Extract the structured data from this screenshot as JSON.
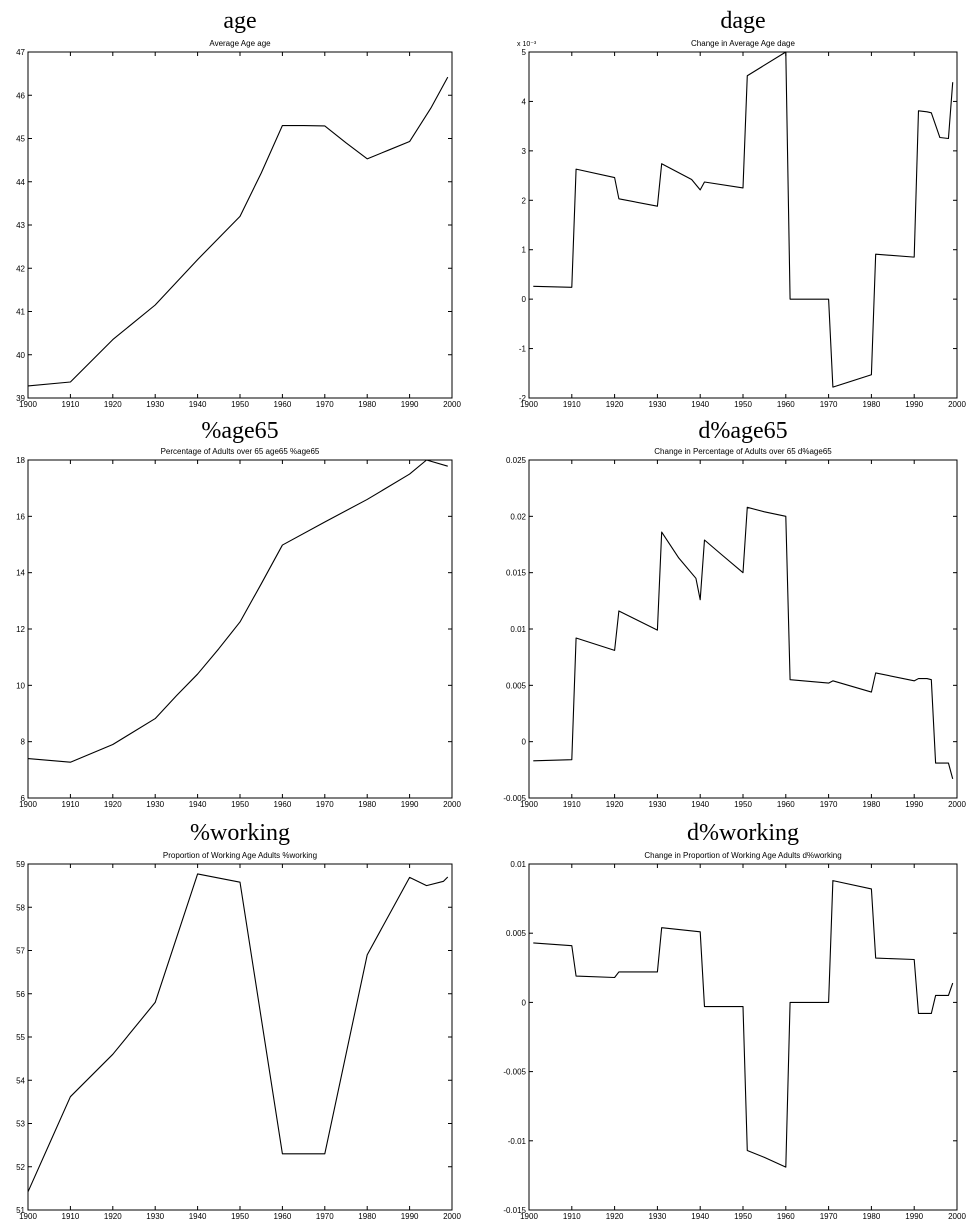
{
  "chart_data": [
    {
      "type": "line",
      "title": "age",
      "subtitle": "Average Age age",
      "xlabel": "",
      "ylabel": "",
      "xlim": [
        1900,
        2000
      ],
      "ylim": [
        39,
        47
      ],
      "xticks": [
        1900,
        1910,
        1920,
        1930,
        1940,
        1950,
        1960,
        1970,
        1980,
        1990,
        2000
      ],
      "yticks": [
        39,
        40,
        41,
        42,
        43,
        44,
        45,
        46,
        47
      ],
      "ytick_labels": [
        "39",
        "40",
        "41",
        "42",
        "43",
        "44",
        "45",
        "46",
        "47"
      ],
      "y_exponent_label": "",
      "grid": false,
      "series": [
        {
          "x": [
            1900,
            1910,
            1920,
            1930,
            1940,
            1950,
            1955,
            1960,
            1965,
            1970,
            1975,
            1980,
            1985,
            1990,
            1995,
            1999
          ],
          "y": [
            39.28,
            39.37,
            40.35,
            41.15,
            42.2,
            43.2,
            44.2,
            45.3,
            45.3,
            45.29,
            44.9,
            44.53,
            44.73,
            44.93,
            45.7,
            46.42
          ]
        }
      ]
    },
    {
      "type": "line",
      "title": "dage",
      "subtitle": "Change in Average Age dage",
      "xlabel": "",
      "ylabel": "",
      "xlim": [
        1900,
        2000
      ],
      "ylim": [
        -0.002,
        0.005
      ],
      "xticks": [
        1900,
        1910,
        1920,
        1930,
        1940,
        1950,
        1960,
        1970,
        1980,
        1990,
        2000
      ],
      "yticks": [
        -0.002,
        -0.001,
        0,
        0.001,
        0.002,
        0.003,
        0.004,
        0.005
      ],
      "ytick_labels": [
        "-2",
        "-1",
        "0",
        "1",
        "2",
        "3",
        "4",
        "5"
      ],
      "y_exponent_label": "x 10⁻³",
      "grid": false,
      "series": [
        {
          "x": [
            1901,
            1910,
            1911,
            1920,
            1921,
            1930,
            1931,
            1938,
            1940,
            1941,
            1950,
            1951,
            1960,
            1961,
            1970,
            1971,
            1980,
            1981,
            1990,
            1991,
            1993,
            1994,
            1996,
            1998,
            1999
          ],
          "y": [
            0.00026,
            0.00024,
            0.00263,
            0.00246,
            0.00203,
            0.00188,
            0.00274,
            0.00242,
            0.00221,
            0.00237,
            0.00225,
            0.00452,
            0.005,
            0.0,
            0.0,
            -0.00178,
            -0.00153,
            0.00091,
            0.00085,
            0.00381,
            0.00379,
            0.00377,
            0.00327,
            0.00325,
            0.00439
          ]
        }
      ]
    },
    {
      "type": "line",
      "title": "%age65",
      "subtitle": "Percentage of Adults over 65 age65 %age65",
      "xlabel": "",
      "ylabel": "",
      "xlim": [
        1900,
        2000
      ],
      "ylim": [
        6,
        18
      ],
      "xticks": [
        1900,
        1910,
        1920,
        1930,
        1940,
        1950,
        1960,
        1970,
        1980,
        1990,
        2000
      ],
      "yticks": [
        6,
        8,
        10,
        12,
        14,
        16,
        18
      ],
      "ytick_labels": [
        "6",
        "8",
        "10",
        "12",
        "14",
        "16",
        "18"
      ],
      "y_exponent_label": "",
      "grid": false,
      "series": [
        {
          "x": [
            1900,
            1910,
            1920,
            1930,
            1935,
            1940,
            1945,
            1950,
            1955,
            1960,
            1970,
            1980,
            1990,
            1994,
            1999
          ],
          "y": [
            7.4,
            7.27,
            7.9,
            8.82,
            9.63,
            10.4,
            11.3,
            12.25,
            13.6,
            14.98,
            15.8,
            16.6,
            17.5,
            18.0,
            17.78
          ]
        }
      ]
    },
    {
      "type": "line",
      "title": "d%age65",
      "subtitle": "Change in Percentage of Adults over 65 d%age65",
      "xlabel": "",
      "ylabel": "",
      "xlim": [
        1900,
        2000
      ],
      "ylim": [
        -0.005,
        0.025
      ],
      "xticks": [
        1900,
        1910,
        1920,
        1930,
        1940,
        1950,
        1960,
        1970,
        1980,
        1990,
        2000
      ],
      "yticks": [
        -0.005,
        0,
        0.005,
        0.01,
        0.015,
        0.02,
        0.025
      ],
      "ytick_labels": [
        "-0.005",
        "0",
        "0.005",
        "0.01",
        "0.015",
        "0.02",
        "0.025"
      ],
      "y_exponent_label": "",
      "grid": false,
      "series": [
        {
          "x": [
            1901,
            1910,
            1911,
            1920,
            1921,
            1930,
            1931,
            1935,
            1939,
            1940,
            1941,
            1945,
            1950,
            1951,
            1955,
            1960,
            1961,
            1970,
            1971,
            1980,
            1981,
            1990,
            1991,
            1993,
            1994,
            1995,
            1998,
            1999
          ],
          "y": [
            -0.0017,
            -0.0016,
            0.0092,
            0.0081,
            0.0116,
            0.0099,
            0.0186,
            0.0163,
            0.0145,
            0.0126,
            0.0179,
            0.0166,
            0.015,
            0.0208,
            0.0204,
            0.02,
            0.0055,
            0.0052,
            0.0054,
            0.0044,
            0.0061,
            0.0054,
            0.0056,
            0.0056,
            0.0055,
            -0.0019,
            -0.0019,
            -0.0033
          ]
        }
      ]
    },
    {
      "type": "line",
      "title": "%working",
      "subtitle": "Proportion of Working Age Adults %working",
      "xlabel": "",
      "ylabel": "",
      "xlim": [
        1900,
        2000
      ],
      "ylim": [
        51,
        59
      ],
      "xticks": [
        1900,
        1910,
        1920,
        1930,
        1940,
        1950,
        1960,
        1970,
        1980,
        1990,
        2000
      ],
      "yticks": [
        51,
        52,
        53,
        54,
        55,
        56,
        57,
        58,
        59
      ],
      "ytick_labels": [
        "51",
        "52",
        "53",
        "54",
        "55",
        "56",
        "57",
        "58",
        "59"
      ],
      "y_exponent_label": "",
      "grid": false,
      "series": [
        {
          "x": [
            1900,
            1910,
            1920,
            1930,
            1940,
            1950,
            1960,
            1970,
            1980,
            1990,
            1994,
            1998,
            1999
          ],
          "y": [
            51.42,
            53.62,
            54.6,
            55.8,
            58.77,
            58.58,
            52.3,
            52.3,
            56.9,
            58.69,
            58.5,
            58.6,
            58.7
          ]
        }
      ]
    },
    {
      "type": "line",
      "title": "d%working",
      "subtitle": "Change in Proportion of Working Age Adults d%working",
      "xlabel": "",
      "ylabel": "",
      "xlim": [
        1900,
        2000
      ],
      "ylim": [
        -0.015,
        0.01
      ],
      "xticks": [
        1900,
        1910,
        1920,
        1930,
        1940,
        1950,
        1960,
        1970,
        1980,
        1990,
        2000
      ],
      "yticks": [
        -0.015,
        -0.01,
        -0.005,
        0,
        0.005,
        0.01
      ],
      "ytick_labels": [
        "-0.015",
        "-0.01",
        "-0.005",
        "0",
        "0.005",
        "0.01"
      ],
      "y_exponent_label": "",
      "grid": false,
      "series": [
        {
          "x": [
            1901,
            1910,
            1911,
            1920,
            1921,
            1930,
            1931,
            1940,
            1941,
            1950,
            1951,
            1955,
            1960,
            1961,
            1970,
            1971,
            1980,
            1981,
            1990,
            1991,
            1993,
            1994,
            1995,
            1998,
            1999
          ],
          "y": [
            0.0043,
            0.0041,
            0.0019,
            0.0018,
            0.0022,
            0.0022,
            0.0054,
            0.0051,
            -0.0003,
            -0.0003,
            -0.0107,
            -0.0112,
            -0.0119,
            0.0,
            0.0,
            0.0088,
            0.0082,
            0.0032,
            0.0031,
            -0.0008,
            -0.0008,
            -0.0008,
            0.0005,
            0.0005,
            0.0014
          ]
        }
      ]
    }
  ]
}
